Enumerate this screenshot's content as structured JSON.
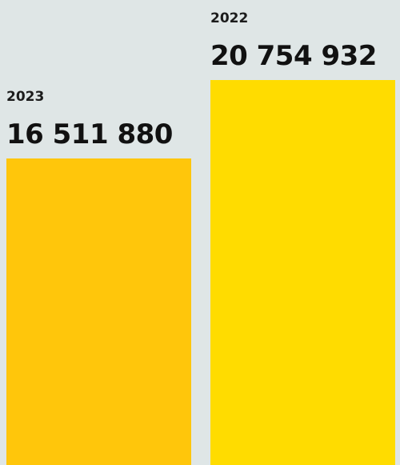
{
  "chart_data": {
    "type": "bar",
    "categories": [
      "2023",
      "2022"
    ],
    "values": [
      16511880,
      20754932
    ],
    "value_labels": [
      "16 511 880",
      "20 754 932"
    ],
    "colors": [
      "#ffc60b",
      "#ffdc00"
    ],
    "background": "#dfe6e6",
    "title": "",
    "xlabel": "",
    "ylabel": ""
  }
}
